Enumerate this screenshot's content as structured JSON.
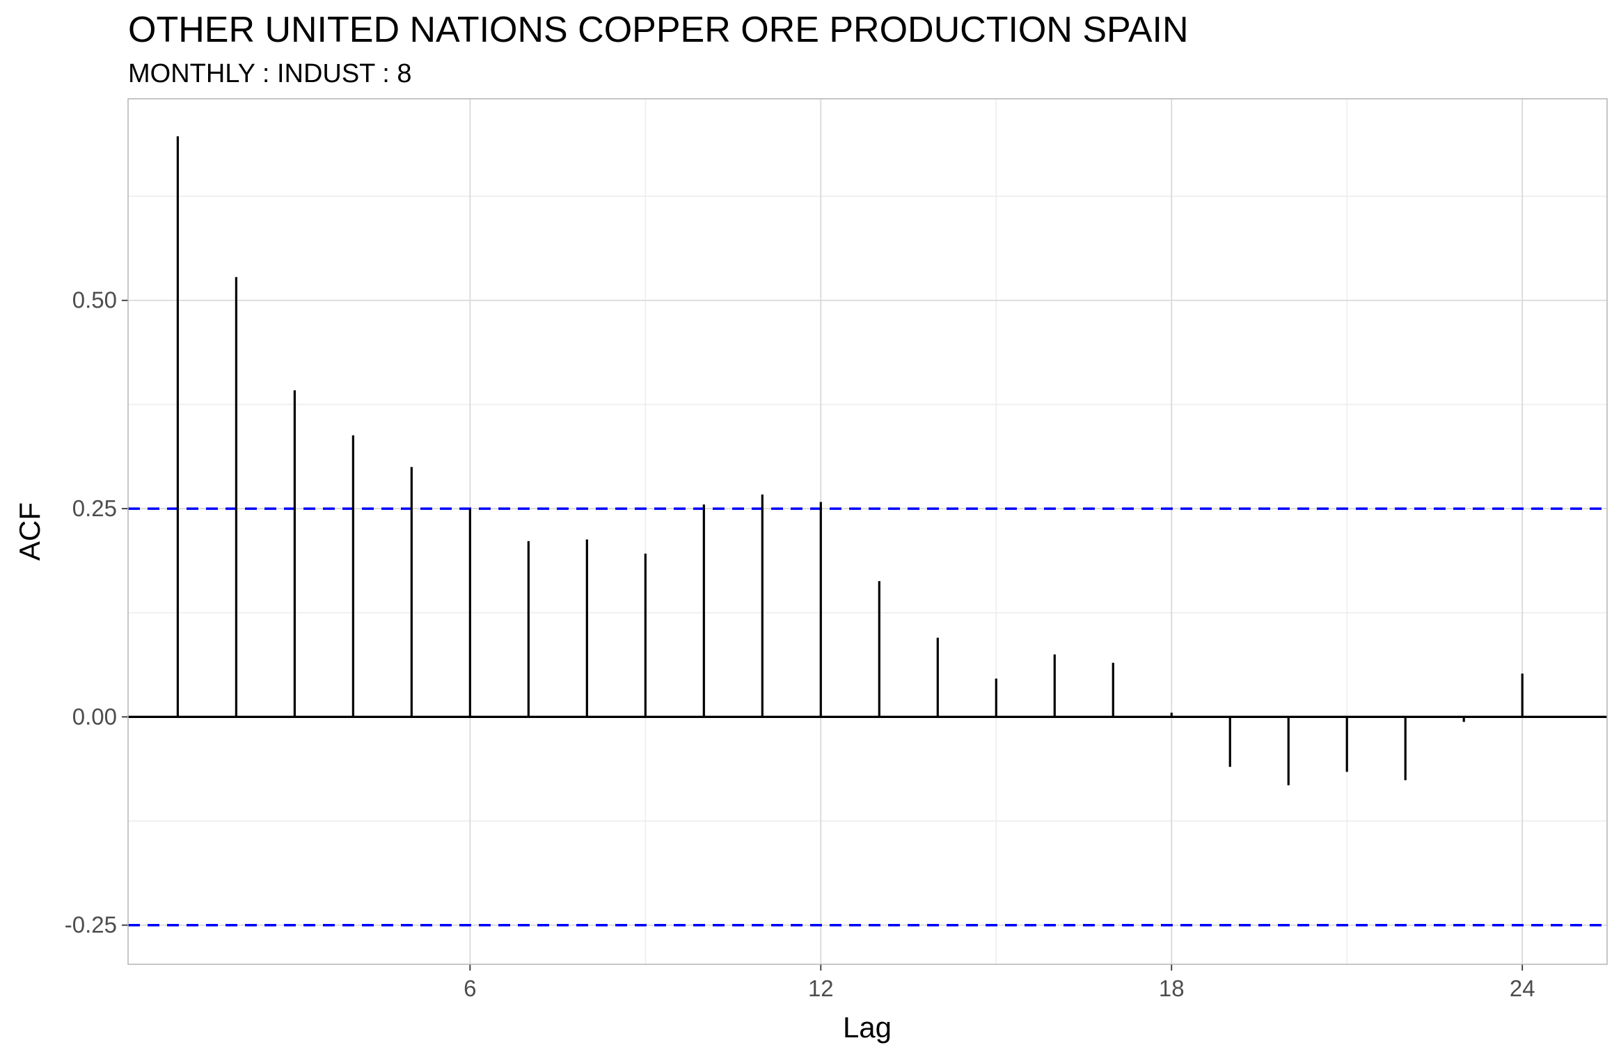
{
  "chart_data": {
    "type": "bar",
    "title": "OTHER UNITED NATIONS COPPER ORE PRODUCTION SPAIN",
    "subtitle": "MONTHLY : INDUST : 8",
    "xlabel": "Lag",
    "ylabel": "ACF",
    "xlim": [
      0.15,
      25.45
    ],
    "ylim": [
      -0.297,
      0.742
    ],
    "x_ticks": [
      6,
      12,
      18,
      24
    ],
    "x_tick_labels": [
      "6",
      "12",
      "18",
      "24"
    ],
    "y_ticks": [
      -0.25,
      0.0,
      0.25,
      0.5
    ],
    "y_tick_labels": [
      "-0.25",
      "0.00",
      "0.25",
      "0.50"
    ],
    "grid": true,
    "legend": "none",
    "lags": [
      1,
      2,
      3,
      4,
      5,
      6,
      7,
      8,
      9,
      10,
      11,
      12,
      13,
      14,
      15,
      16,
      17,
      18,
      19,
      20,
      21,
      22,
      23,
      24
    ],
    "values": [
      0.697,
      0.528,
      0.392,
      0.338,
      0.3,
      0.25,
      0.211,
      0.213,
      0.196,
      0.255,
      0.267,
      0.258,
      0.163,
      0.095,
      0.046,
      0.075,
      0.065,
      0.005,
      -0.06,
      -0.082,
      -0.066,
      -0.076,
      -0.006,
      0.052
    ],
    "confidence_bound": 0.25,
    "colors": {
      "bars": "#000000",
      "confidence_lines": "#0000ff",
      "grid_major": "#d9d9d9",
      "grid_minor": "#ececec",
      "panel_border": "#b3b3b3",
      "tick_text": "#4d4d4d"
    }
  }
}
